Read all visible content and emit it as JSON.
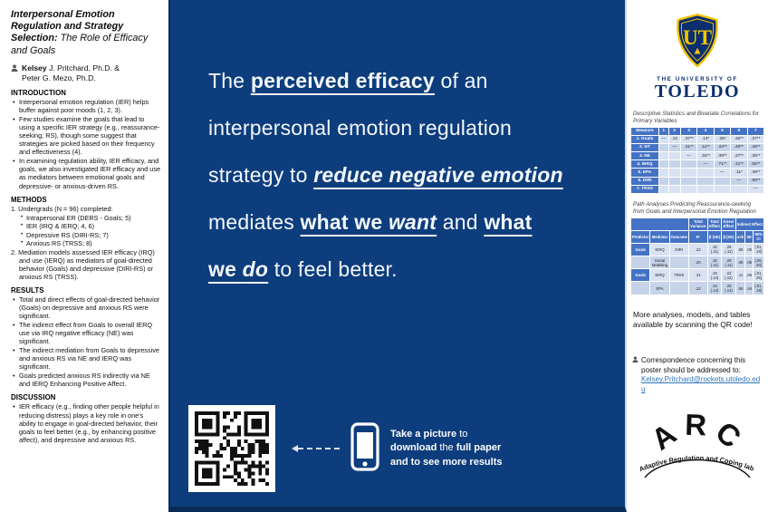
{
  "colors": {
    "panel_blue": "#0d3d7c",
    "panel_border": "#092b58",
    "table_header_blue": "#4472c4",
    "table_row_light": "#d9e2f2",
    "table_row_dark": "#c6d3e9",
    "link_blue": "#2e74b5",
    "ut_navy": "#0b2e6f",
    "ut_gold": "#f5c400"
  },
  "left": {
    "title_bold": "Interpersonal Emotion Regulation and Strategy Selection:",
    "title_light": " The Role of Efficacy and Goals",
    "author_bold": "Kelsey",
    "author_rest": " J. Pritchard, Ph.D. &",
    "author_line2": "Peter G. Mezo, Ph.D.",
    "intro": {
      "heading": "INTRODUCTION",
      "bullets": [
        "Interpersonal emotion regulation (IER) helps buffer against poor moods (1, 2, 3).",
        "Few studies examine the goals that lead to using a specific IER strategy (e.g., reassurance-seeking; RS), though some suggest that strategies are picked based on their frequency and effectiveness (4).",
        "In examining regulation ability, IER efficacy, and goals, we also investigated IER efficacy and use as mediators between emotional goals and depressive- or anxious-driven RS."
      ]
    },
    "methods": {
      "heading": "METHODS",
      "item1": "1. Undergrads (N = 96) completed:",
      "sub_bullets": [
        "Intrapersonal ER (DERS - Goals; 5)",
        "IER (IRQ & IERQ; 4, 6)",
        "Depressive RS (DIRI-RS; 7)",
        "Anxious RS (TRSS; 8)"
      ],
      "item2": "2. Mediation models assessed IER efficacy (IRQ) and use (IERQ) as mediators of goal-directed behavior (Goals) and depressive (DIRI-RS) or anxious RS (TRSS)."
    },
    "results": {
      "heading": "RESULTS",
      "bullets": [
        "Total and direct effects of goal-directed behavior (Goals) on depressive and anxious RS were significant.",
        "The indirect effect from Goals to overall IERQ use via IRQ negative efficacy (NE) was significant.",
        "The indirect mediation from Goals to depressive and anxious RS via NE and IERQ was significant.",
        "Goals predicted anxious RS indirectly via NE and IERQ Enhancing Positive Affect."
      ]
    },
    "discussion": {
      "heading": "DISCUSSION",
      "bullets": [
        "IER efficacy (e.g., finding other people helpful in reducing distress) plays a key role in one's ability to engage in goal-directed behavior, their goals to feel better (e.g., by enhancing positive affect), and depressive and anxious RS."
      ]
    }
  },
  "center": {
    "headline_segments": [
      "The ",
      "perceived efficacy",
      " of an",
      "interpersonal emotion regulation",
      "strategy to ",
      "reduce negative emotion",
      "mediates ",
      "what we ",
      "want",
      " and ",
      "what",
      "we ",
      "do",
      " to feel better."
    ],
    "qr_caption": {
      "seg0": "Take a picture",
      "seg1": " to",
      "seg2": "download",
      "seg3": " the ",
      "seg4": "full paper",
      "seg5": "and to see more results"
    }
  },
  "right": {
    "ut_monogram": "UT",
    "ut_university": "THE UNIVERSITY OF",
    "ut_toledo": "TOLEDO",
    "table1": {
      "caption": "Descriptive Statistics and Bivariate Correlations for Primary Variables",
      "headers": [
        "Measure",
        "1",
        "2",
        "3",
        "4",
        "5",
        "6",
        "7"
      ],
      "rows": [
        [
          "1. Goals",
          "—",
          ".12",
          ".37**",
          ".14*",
          ".25*",
          ".32**",
          ".37**"
        ],
        [
          "2. NT",
          "",
          "—",
          ".41**",
          ".11**",
          ".44**",
          ".40**",
          ".46**"
        ],
        [
          "3. NE",
          "",
          "",
          "—",
          ".34**",
          ".39**",
          ".27**",
          ".35**"
        ],
        [
          "4. IERQ",
          "",
          "",
          "",
          "—",
          ".71**",
          ".41**",
          ".55**"
        ],
        [
          "5. EPA",
          "",
          "",
          "",
          "",
          "—",
          ".11*",
          ".46**"
        ],
        [
          "6. DIRI",
          "",
          "",
          "",
          "",
          "",
          "—",
          ".60**"
        ],
        [
          "7. TRSS",
          "",
          "",
          "",
          "",
          "",
          "",
          "—"
        ]
      ]
    },
    "table2": {
      "caption": "Path Analyses Predicting Reassurance-seeking from Goals and Interpersonal Emotion Regulation",
      "group_headers": [
        "Total Variance",
        "Total Effect",
        "Direct Effect",
        "Indirect Effect"
      ],
      "headers": [
        "Predictor",
        "Mediator",
        "Outcome",
        "R²",
        "β (SE)",
        "β (SE)",
        "a×b",
        "SE",
        "95% CI"
      ],
      "rows": [
        [
          "Goals",
          "IERQ",
          "DIRI",
          ".22",
          ".32 (.11)",
          ".26 (.11)",
          ".08",
          ".05",
          "[.01, .18]"
        ],
        [
          "",
          "Social Modeling",
          "",
          ".20",
          ".32 (.11)",
          ".29 (.11)",
          ".08",
          ".05",
          "[.09, .20]"
        ],
        [
          "Goals",
          "IERQ",
          "TRSS",
          ".31",
          ".34 (.14)",
          ".22 (.12)",
          ".11",
          ".06",
          "[.01, .25]"
        ],
        [
          "",
          "EPA",
          "",
          ".22",
          ".34 (.14)",
          ".26 (.14)",
          ".08",
          ".04",
          "[.01, .18]"
        ]
      ]
    },
    "qr_note": "More analyses, models, and tables available by scanning the QR code!",
    "correspondence_text": "Correspondence concerning this poster should be addressed to:",
    "correspondence_email": "Kelsey.Pritchard@rockets.utoledo.edu",
    "arc_monogram": "ARC",
    "arc_lab_name": "Adaptive Regulation and Coping lab"
  }
}
